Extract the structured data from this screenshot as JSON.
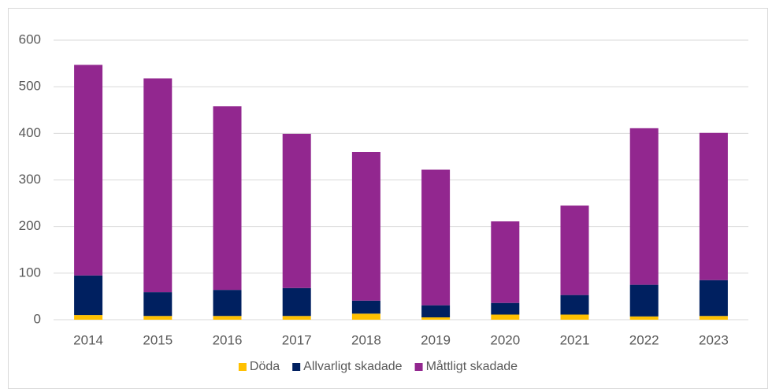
{
  "chart_data": {
    "type": "stacked_bar",
    "categories": [
      "2014",
      "2015",
      "2016",
      "2017",
      "2018",
      "2019",
      "2020",
      "2021",
      "2022",
      "2023"
    ],
    "series": [
      {
        "name": "Döda",
        "color": "#ffc000",
        "values": [
          10,
          8,
          8,
          8,
          13,
          5,
          11,
          11,
          7,
          8
        ]
      },
      {
        "name": "Allvarligt skadade",
        "color": "#002060",
        "values": [
          85,
          51,
          56,
          60,
          28,
          26,
          25,
          42,
          68,
          77
        ]
      },
      {
        "name": "Måttligt skadade",
        "color": "#92278f",
        "values": [
          452,
          459,
          394,
          331,
          319,
          291,
          175,
          192,
          336,
          316
        ]
      }
    ],
    "ylim": [
      0,
      600
    ],
    "yticks": [
      0,
      100,
      200,
      300,
      400,
      500,
      600
    ],
    "grid": true,
    "legend": "bottom"
  }
}
